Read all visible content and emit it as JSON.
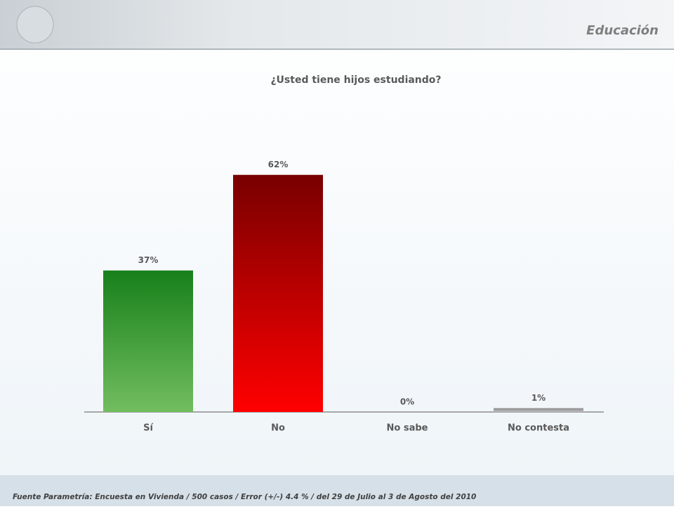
{
  "chart_data": {
    "type": "bar",
    "section": "Educación",
    "title": "¿Usted tiene hijos estudiando?",
    "categories": [
      "Sí",
      "No",
      "No sabe",
      "No contesta"
    ],
    "values": [
      37,
      62,
      0,
      1
    ],
    "value_labels": [
      "37%",
      "62%",
      "0%",
      "1%"
    ],
    "colors": [
      [
        "#17801a",
        "#72bd5f"
      ],
      [
        "#780000",
        "#ff0000"
      ],
      [
        "#8a8a8a",
        "#bdbdbd"
      ],
      [
        "#8a8a8a",
        "#bdbdbd"
      ]
    ],
    "source": "Fuente Parametría: Encuesta en Vivienda /  500 casos / Error (+/-) 4.4 % / del 29 de Julio al 3 de Agosto del 2010"
  }
}
